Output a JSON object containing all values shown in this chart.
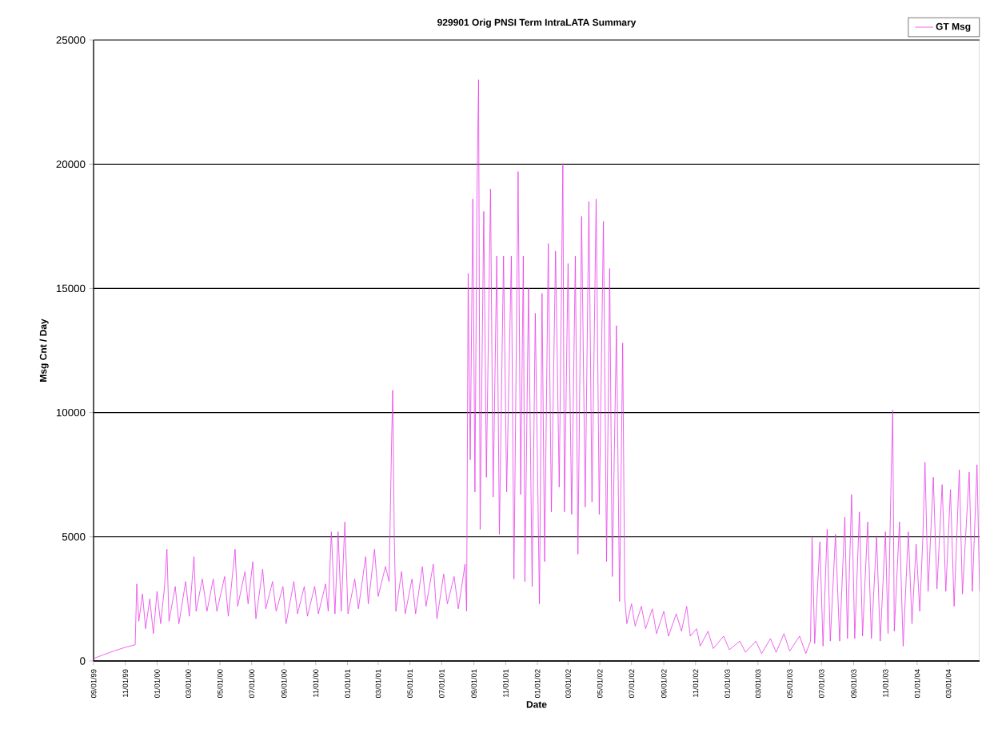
{
  "chart_data": {
    "type": "line",
    "title": "929901 Orig PNSI Term IntraLATA Summary",
    "xlabel": "Date",
    "ylabel": "Msg Cnt / Day",
    "xlim": [
      "1999-09-01",
      "2004-04-30"
    ],
    "xticks": [
      {
        "value": "1999-09-01",
        "label": "09/01/99"
      },
      {
        "value": "1999-11-01",
        "label": "11/01/99"
      },
      {
        "value": "2000-01-01",
        "label": "01/01/00"
      },
      {
        "value": "2000-03-01",
        "label": "03/01/00"
      },
      {
        "value": "2000-05-01",
        "label": "05/01/00"
      },
      {
        "value": "2000-07-01",
        "label": "07/01/00"
      },
      {
        "value": "2000-09-01",
        "label": "09/01/00"
      },
      {
        "value": "2000-11-01",
        "label": "11/01/00"
      },
      {
        "value": "2001-01-01",
        "label": "01/01/01"
      },
      {
        "value": "2001-03-01",
        "label": "03/01/01"
      },
      {
        "value": "2001-05-01",
        "label": "05/01/01"
      },
      {
        "value": "2001-07-01",
        "label": "07/01/01"
      },
      {
        "value": "2001-09-01",
        "label": "09/01/01"
      },
      {
        "value": "2001-11-01",
        "label": "11/01/01"
      },
      {
        "value": "2002-01-01",
        "label": "01/01/02"
      },
      {
        "value": "2002-03-01",
        "label": "03/01/02"
      },
      {
        "value": "2002-05-01",
        "label": "05/01/02"
      },
      {
        "value": "2002-07-01",
        "label": "07/01/02"
      },
      {
        "value": "2002-09-01",
        "label": "09/01/02"
      },
      {
        "value": "2002-11-01",
        "label": "11/01/02"
      },
      {
        "value": "2003-01-01",
        "label": "01/01/03"
      },
      {
        "value": "2003-03-01",
        "label": "03/01/03"
      },
      {
        "value": "2003-05-01",
        "label": "05/01/03"
      },
      {
        "value": "2003-07-01",
        "label": "07/01/03"
      },
      {
        "value": "2003-09-01",
        "label": "09/01/03"
      },
      {
        "value": "2003-11-01",
        "label": "11/01/03"
      },
      {
        "value": "2004-01-01",
        "label": "01/01/04"
      },
      {
        "value": "2004-03-01",
        "label": "03/01/04"
      }
    ],
    "ylim": [
      0,
      25000
    ],
    "yticks": [
      0,
      5000,
      10000,
      15000,
      20000,
      25000
    ],
    "grid": "y",
    "legend": "top right",
    "marker": "none",
    "line_style": "solid",
    "x": [
      "1999-09-01",
      "1999-09-20",
      "1999-10-10",
      "1999-11-01",
      "1999-11-20",
      "1999-11-23",
      "1999-11-27",
      "1999-12-04",
      "1999-12-10",
      "1999-12-18",
      "1999-12-25",
      "2000-01-01",
      "2000-01-08",
      "2000-01-15",
      "2000-01-20",
      "2000-01-24",
      "2000-02-05",
      "2000-02-12",
      "2000-02-25",
      "2000-03-03",
      "2000-03-12",
      "2000-03-16",
      "2000-03-28",
      "2000-04-06",
      "2000-04-18",
      "2000-04-25",
      "2000-05-10",
      "2000-05-17",
      "2000-05-30",
      "2000-06-04",
      "2000-06-18",
      "2000-06-24",
      "2000-07-03",
      "2000-07-09",
      "2000-07-22",
      "2000-07-28",
      "2000-08-10",
      "2000-08-17",
      "2000-08-30",
      "2000-09-05",
      "2000-09-20",
      "2000-09-27",
      "2000-10-10",
      "2000-10-16",
      "2000-10-30",
      "2000-11-06",
      "2000-11-20",
      "2000-11-25",
      "2000-12-01",
      "2000-12-08",
      "2000-12-14",
      "2000-12-20",
      "2000-12-27",
      "2001-01-02",
      "2001-01-15",
      "2001-01-22",
      "2001-02-05",
      "2001-02-10",
      "2001-02-22",
      "2001-03-01",
      "2001-03-15",
      "2001-03-22",
      "2001-03-27",
      "2001-03-29",
      "2001-04-01",
      "2001-04-04",
      "2001-04-15",
      "2001-04-22",
      "2001-05-05",
      "2001-05-12",
      "2001-05-25",
      "2001-06-01",
      "2001-06-15",
      "2001-06-22",
      "2001-07-05",
      "2001-07-12",
      "2001-07-25",
      "2001-08-02",
      "2001-08-15",
      "2001-08-18",
      "2001-08-21",
      "2001-08-25",
      "2001-08-30",
      "2001-09-03",
      "2001-09-07",
      "2001-09-10",
      "2001-09-13",
      "2001-09-20",
      "2001-09-25",
      "2001-10-03",
      "2001-10-08",
      "2001-10-15",
      "2001-10-20",
      "2001-10-28",
      "2001-11-03",
      "2001-11-12",
      "2001-11-17",
      "2001-11-25",
      "2001-11-30",
      "2001-12-05",
      "2001-12-08",
      "2001-12-15",
      "2001-12-22",
      "2001-12-28",
      "2002-01-05",
      "2002-01-10",
      "2002-01-15",
      "2002-01-22",
      "2002-01-28",
      "2002-02-05",
      "2002-02-12",
      "2002-02-19",
      "2002-02-22",
      "2002-03-01",
      "2002-03-08",
      "2002-03-15",
      "2002-03-20",
      "2002-03-27",
      "2002-04-03",
      "2002-04-10",
      "2002-04-16",
      "2002-04-24",
      "2002-04-30",
      "2002-05-08",
      "2002-05-14",
      "2002-05-20",
      "2002-05-25",
      "2002-06-02",
      "2002-06-08",
      "2002-06-14",
      "2002-06-18",
      "2002-06-22",
      "2002-07-01",
      "2002-07-08",
      "2002-07-20",
      "2002-07-28",
      "2002-08-10",
      "2002-08-18",
      "2002-09-01",
      "2002-09-10",
      "2002-09-25",
      "2002-10-05",
      "2002-10-15",
      "2002-10-22",
      "2002-11-03",
      "2002-11-10",
      "2002-11-25",
      "2002-12-05",
      "2002-12-25",
      "2003-01-05",
      "2003-01-25",
      "2003-02-05",
      "2003-02-25",
      "2003-03-08",
      "2003-03-25",
      "2003-04-05",
      "2003-04-20",
      "2003-05-01",
      "2003-05-20",
      "2003-06-01",
      "2003-06-10",
      "2003-06-13",
      "2003-06-18",
      "2003-06-28",
      "2003-07-04",
      "2003-07-12",
      "2003-07-18",
      "2003-07-28",
      "2003-08-05",
      "2003-08-15",
      "2003-08-20",
      "2003-08-28",
      "2003-09-03",
      "2003-09-12",
      "2003-09-18",
      "2003-09-28",
      "2003-10-05",
      "2003-10-15",
      "2003-10-22",
      "2003-11-01",
      "2003-11-06",
      "2003-11-12",
      "2003-11-15",
      "2003-11-18",
      "2003-11-28",
      "2003-12-05",
      "2003-12-15",
      "2003-12-22",
      "2003-12-30",
      "2004-01-06",
      "2004-01-12",
      "2004-01-16",
      "2004-01-22",
      "2004-02-01",
      "2004-02-08",
      "2004-02-18",
      "2004-02-25",
      "2004-03-05",
      "2004-03-12",
      "2004-03-22",
      "2004-03-28",
      "2004-04-10",
      "2004-04-16",
      "2004-04-25",
      "2004-04-30"
    ],
    "series": [
      {
        "name": "GT Msg",
        "color": "#e83ee8",
        "values": [
          100,
          250,
          400,
          550,
          650,
          3100,
          1600,
          2700,
          1300,
          2500,
          1100,
          2800,
          1500,
          2900,
          4500,
          1600,
          3000,
          1500,
          3200,
          1800,
          4200,
          2000,
          3300,
          2000,
          3300,
          2000,
          3400,
          1800,
          4500,
          2200,
          3600,
          2300,
          4000,
          1700,
          3700,
          2100,
          3200,
          2000,
          3000,
          1500,
          3200,
          1900,
          3000,
          1800,
          3000,
          1900,
          3100,
          2000,
          5200,
          1900,
          5200,
          2000,
          5600,
          1900,
          3300,
          2100,
          4200,
          2300,
          4500,
          2600,
          3800,
          3200,
          9000,
          10900,
          5000,
          2000,
          3600,
          1900,
          3300,
          1900,
          3800,
          2200,
          3900,
          1700,
          3500,
          2300,
          3400,
          2100,
          3900,
          2000,
          15600,
          8100,
          18600,
          6800,
          18900,
          23400,
          5300,
          18100,
          7400,
          19000,
          6600,
          16300,
          5100,
          16300,
          6800,
          16300,
          3300,
          19700,
          6700,
          16300,
          3200,
          15000,
          3000,
          14000,
          2300,
          14800,
          4000,
          16800,
          6000,
          16500,
          7000,
          20000,
          6000,
          16000,
          5900,
          16300,
          4300,
          17900,
          6200,
          18500,
          6400,
          18600,
          5900,
          17700,
          4000,
          15800,
          3400,
          13500,
          2400,
          12800,
          2500,
          1500,
          2300,
          1400,
          2200,
          1300,
          2100,
          1100,
          2000,
          1000,
          1900,
          1200,
          2200,
          1000,
          1300,
          600,
          1200,
          500,
          1000,
          450,
          800,
          350,
          800,
          300,
          900,
          350,
          1100,
          400,
          1000,
          300,
          800,
          5000,
          700,
          4800,
          600,
          5300,
          800,
          5100,
          800,
          5800,
          900,
          6700,
          900,
          6000,
          1000,
          5600,
          900,
          5000,
          800,
          5200,
          1100,
          7400,
          10100,
          1200,
          5600,
          600,
          5200,
          1500,
          4700,
          2000,
          5000,
          8000,
          2800,
          7400,
          2900,
          7100,
          2800,
          6900,
          2200,
          7700,
          2700,
          7600,
          2800,
          7900,
          2800
        ]
      }
    ]
  }
}
